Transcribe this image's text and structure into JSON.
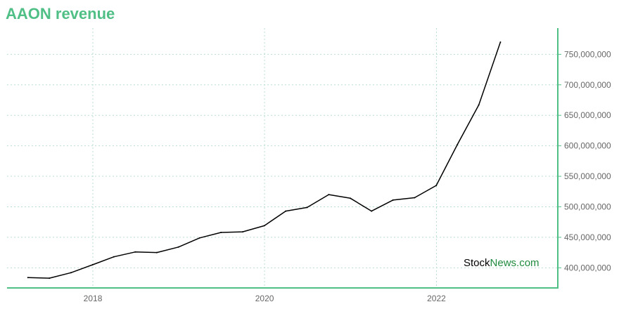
{
  "chart_data": {
    "type": "line",
    "title": "AAON revenue",
    "xlabel": "",
    "ylabel": "",
    "x_tick_labels": [
      "2018",
      "2020",
      "2022"
    ],
    "y_tick_labels": [
      "400,000,000",
      "450,000,000",
      "500,000,000",
      "550,000,000",
      "600,000,000",
      "650,000,000",
      "700,000,000",
      "750,000,000"
    ],
    "xlim": [
      "2017-01-01",
      "2023-06-01"
    ],
    "ylim": [
      367000000,
      793000000
    ],
    "grid": true,
    "legend": "none",
    "series": [
      {
        "color": "#000000",
        "points": [
          {
            "x": "2017-03-31",
            "y": 384000000
          },
          {
            "x": "2017-06-30",
            "y": 383000000
          },
          {
            "x": "2017-09-30",
            "y": 392000000
          },
          {
            "x": "2017-12-31",
            "y": 405000000
          },
          {
            "x": "2018-03-31",
            "y": 418000000
          },
          {
            "x": "2018-06-30",
            "y": 426000000
          },
          {
            "x": "2018-09-30",
            "y": 425000000
          },
          {
            "x": "2018-12-31",
            "y": 434000000
          },
          {
            "x": "2019-03-31",
            "y": 449000000
          },
          {
            "x": "2019-06-30",
            "y": 458000000
          },
          {
            "x": "2019-09-30",
            "y": 459000000
          },
          {
            "x": "2019-12-31",
            "y": 469000000
          },
          {
            "x": "2020-03-31",
            "y": 493000000
          },
          {
            "x": "2020-06-30",
            "y": 499000000
          },
          {
            "x": "2020-09-30",
            "y": 520000000
          },
          {
            "x": "2020-12-31",
            "y": 514000000
          },
          {
            "x": "2021-03-31",
            "y": 493000000
          },
          {
            "x": "2021-06-30",
            "y": 511000000
          },
          {
            "x": "2021-09-30",
            "y": 515000000
          },
          {
            "x": "2021-12-31",
            "y": 535000000
          },
          {
            "x": "2022-03-31",
            "y": 602000000
          },
          {
            "x": "2022-06-30",
            "y": 667000000
          },
          {
            "x": "2022-09-30",
            "y": 770000000
          }
        ]
      }
    ],
    "colors": {
      "title": "#4fbf85",
      "axis": "#4fbf85",
      "grid": "#b9dfd0",
      "line": "#000000"
    },
    "watermark": {
      "part1": "Stock",
      "part2": "News",
      "part3": ".com",
      "color1": "#000000",
      "color2": "#1f8a3f"
    }
  }
}
